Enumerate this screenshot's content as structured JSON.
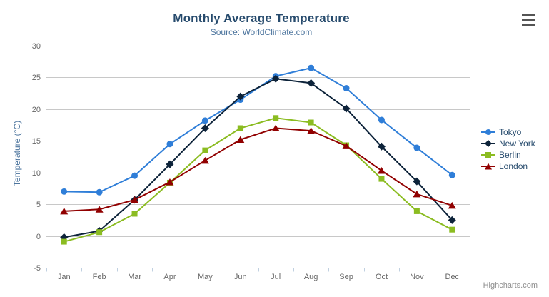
{
  "chart": {
    "credits": "Highcharts.com",
    "export_icon": "hamburger-menu-icon"
  },
  "theme": {
    "title_color": "#274b6d",
    "subtitle_color": "#4d759e",
    "axis_title_color": "#4d759e",
    "axis_label_color": "#666666",
    "grid_color": "#c8c8c8",
    "axis_line_color": "#c0d0e0",
    "legend_text_color": "#274b6d",
    "credits_color": "#909090",
    "background": "#ffffff"
  },
  "chart_data": {
    "type": "line",
    "title": "Monthly Average Temperature",
    "subtitle": "Source: WorldClimate.com",
    "xlabel": "",
    "ylabel": "Temperature (°C)",
    "ylim": [
      -5,
      30
    ],
    "ytick_step": 5,
    "grid": true,
    "legend_position": "right",
    "categories": [
      "Jan",
      "Feb",
      "Mar",
      "Apr",
      "May",
      "Jun",
      "Jul",
      "Aug",
      "Sep",
      "Oct",
      "Nov",
      "Dec"
    ],
    "series": [
      {
        "name": "Tokyo",
        "color": "#2f7ed8",
        "marker": "circle",
        "values": [
          7.0,
          6.9,
          9.5,
          14.5,
          18.2,
          21.5,
          25.2,
          26.5,
          23.3,
          18.3,
          13.9,
          9.6
        ]
      },
      {
        "name": "New York",
        "color": "#0d233a",
        "marker": "diamond",
        "values": [
          -0.2,
          0.8,
          5.7,
          11.3,
          17.0,
          22.0,
          24.8,
          24.1,
          20.1,
          14.1,
          8.6,
          2.5
        ]
      },
      {
        "name": "Berlin",
        "color": "#8bbc21",
        "marker": "square",
        "values": [
          -0.9,
          0.6,
          3.5,
          8.4,
          13.5,
          17.0,
          18.6,
          17.9,
          14.3,
          9.0,
          3.9,
          1.0
        ]
      },
      {
        "name": "London",
        "color": "#910000",
        "marker": "triangle",
        "values": [
          3.9,
          4.2,
          5.7,
          8.5,
          11.9,
          15.2,
          17.0,
          16.6,
          14.2,
          10.3,
          6.6,
          4.8
        ]
      }
    ]
  }
}
